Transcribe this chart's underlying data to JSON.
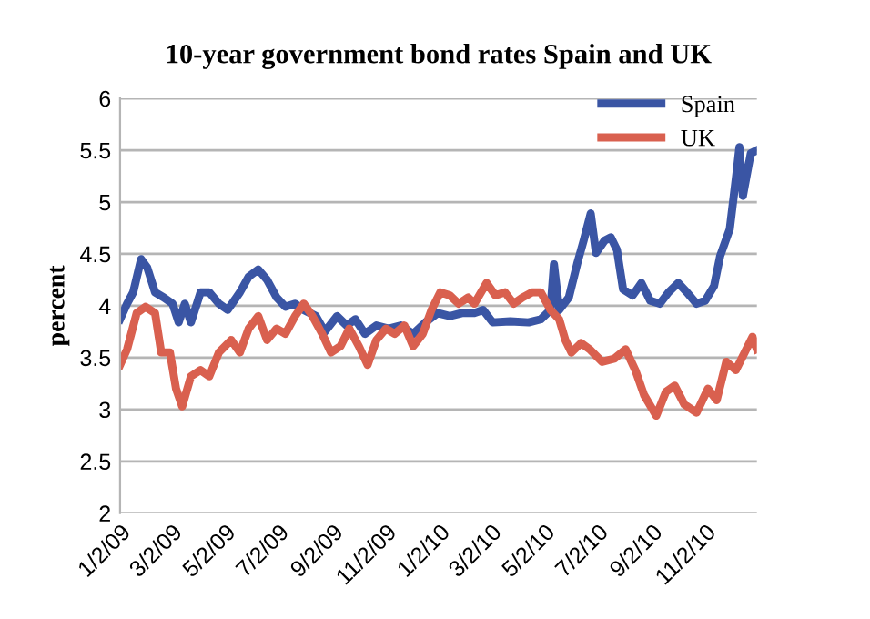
{
  "chart_data": {
    "type": "line",
    "title": "10-year government bond rates Spain and UK",
    "ylabel": "percent",
    "ylim": [
      2,
      6
    ],
    "yticks": [
      2,
      2.5,
      3,
      3.5,
      4,
      4.5,
      5,
      5.5,
      6
    ],
    "xlim": [
      "2009-01-02",
      "2010-12-31"
    ],
    "xticks": [
      {
        "value": "2009-01-02",
        "label": "1/2/09"
      },
      {
        "value": "2009-03-02",
        "label": "3/2/09"
      },
      {
        "value": "2009-05-02",
        "label": "5/2/09"
      },
      {
        "value": "2009-07-02",
        "label": "7/2/09"
      },
      {
        "value": "2009-09-02",
        "label": "9/2/09"
      },
      {
        "value": "2009-11-02",
        "label": "11/2/09"
      },
      {
        "value": "2010-01-02",
        "label": "1/2/10"
      },
      {
        "value": "2010-03-02",
        "label": "3/2/10"
      },
      {
        "value": "2010-05-02",
        "label": "5/2/10"
      },
      {
        "value": "2010-07-02",
        "label": "7/2/10"
      },
      {
        "value": "2010-09-02",
        "label": "9/2/10"
      },
      {
        "value": "2010-11-02",
        "label": "11/2/10"
      }
    ],
    "grid": "y",
    "legend": "top right",
    "marker": "none",
    "line_style": "solid",
    "series": [
      {
        "name": "Spain",
        "color": "#3a55a4",
        "x": [
          "2009-01-02",
          "2009-01-10",
          "2009-01-17",
          "2009-01-26",
          "2009-02-02",
          "2009-02-11",
          "2009-02-21",
          "2009-03-03",
          "2009-03-10",
          "2009-03-17",
          "2009-03-24",
          "2009-04-04",
          "2009-04-14",
          "2009-04-25",
          "2009-05-05",
          "2009-05-19",
          "2009-05-29",
          "2009-06-09",
          "2009-06-19",
          "2009-06-30",
          "2009-07-10",
          "2009-07-21",
          "2009-07-31",
          "2009-08-14",
          "2009-08-24",
          "2009-09-07",
          "2009-09-18",
          "2009-09-28",
          "2009-10-09",
          "2009-10-22",
          "2009-11-05",
          "2009-11-19",
          "2009-12-03",
          "2009-12-17",
          "2009-12-31",
          "2010-01-14",
          "2010-01-28",
          "2010-02-11",
          "2010-02-21",
          "2010-03-04",
          "2010-03-24",
          "2010-04-14",
          "2010-04-28",
          "2010-05-09",
          "2010-05-13",
          "2010-05-19",
          "2010-05-30",
          "2010-06-09",
          "2010-06-16",
          "2010-06-24",
          "2010-06-30",
          "2010-07-10",
          "2010-07-17",
          "2010-07-24",
          "2010-07-31",
          "2010-08-11",
          "2010-08-21",
          "2010-08-31",
          "2010-09-11",
          "2010-09-21",
          "2010-10-02",
          "2010-10-12",
          "2010-10-23",
          "2010-11-02",
          "2010-11-12",
          "2010-11-19",
          "2010-11-30",
          "2010-12-08",
          "2010-12-11",
          "2010-12-15",
          "2010-12-24",
          "2010-12-31"
        ],
        "values": [
          3.87,
          4.02,
          4.13,
          4.45,
          4.37,
          4.13,
          4.08,
          4.02,
          3.84,
          4.02,
          3.84,
          4.13,
          4.13,
          4.02,
          3.96,
          4.13,
          4.28,
          4.35,
          4.25,
          4.08,
          3.99,
          4.02,
          3.96,
          3.9,
          3.75,
          3.9,
          3.81,
          3.87,
          3.73,
          3.81,
          3.78,
          3.81,
          3.73,
          3.84,
          3.93,
          3.9,
          3.93,
          3.93,
          3.96,
          3.84,
          3.85,
          3.84,
          3.87,
          3.96,
          4.4,
          3.96,
          4.08,
          4.42,
          4.63,
          4.89,
          4.51,
          4.63,
          4.66,
          4.54,
          4.16,
          4.1,
          4.22,
          4.05,
          4.02,
          4.13,
          4.22,
          4.13,
          4.02,
          4.05,
          4.19,
          4.48,
          4.74,
          5.3,
          5.53,
          5.06,
          5.47,
          5.5
        ]
      },
      {
        "name": "UK",
        "color": "#d9604f",
        "x": [
          "2009-01-02",
          "2009-01-10",
          "2009-01-21",
          "2009-01-31",
          "2009-02-11",
          "2009-02-18",
          "2009-02-28",
          "2009-03-07",
          "2009-03-14",
          "2009-03-24",
          "2009-04-04",
          "2009-04-14",
          "2009-04-25",
          "2009-05-09",
          "2009-05-19",
          "2009-05-29",
          "2009-06-09",
          "2009-06-19",
          "2009-06-30",
          "2009-07-10",
          "2009-07-21",
          "2009-07-31",
          "2009-08-10",
          "2009-08-21",
          "2009-08-31",
          "2009-09-11",
          "2009-09-21",
          "2009-10-02",
          "2009-10-12",
          "2009-10-22",
          "2009-11-02",
          "2009-11-12",
          "2009-11-23",
          "2009-12-03",
          "2009-12-14",
          "2009-12-24",
          "2010-01-03",
          "2010-01-14",
          "2010-01-24",
          "2010-02-04",
          "2010-02-11",
          "2010-02-25",
          "2010-03-07",
          "2010-03-18",
          "2010-03-28",
          "2010-04-07",
          "2010-04-18",
          "2010-04-28",
          "2010-05-09",
          "2010-05-19",
          "2010-05-26",
          "2010-06-02",
          "2010-06-13",
          "2010-06-23",
          "2010-07-07",
          "2010-07-21",
          "2010-08-03",
          "2010-08-14",
          "2010-08-24",
          "2010-09-07",
          "2010-09-18",
          "2010-09-28",
          "2010-10-09",
          "2010-10-23",
          "2010-11-05",
          "2010-11-15",
          "2010-11-26",
          "2010-12-07",
          "2010-12-17",
          "2010-12-26",
          "2010-12-31"
        ],
        "values": [
          3.43,
          3.58,
          3.93,
          3.99,
          3.93,
          3.55,
          3.55,
          3.2,
          3.03,
          3.32,
          3.38,
          3.32,
          3.55,
          3.67,
          3.55,
          3.78,
          3.9,
          3.67,
          3.78,
          3.73,
          3.9,
          4.02,
          3.9,
          3.73,
          3.55,
          3.61,
          3.78,
          3.61,
          3.43,
          3.67,
          3.78,
          3.73,
          3.81,
          3.61,
          3.73,
          3.96,
          4.13,
          4.1,
          4.02,
          4.08,
          4.02,
          4.22,
          4.1,
          4.13,
          4.02,
          4.08,
          4.13,
          4.13,
          3.96,
          3.87,
          3.67,
          3.55,
          3.64,
          3.58,
          3.46,
          3.49,
          3.58,
          3.38,
          3.14,
          2.94,
          3.17,
          3.23,
          3.05,
          2.97,
          3.2,
          3.09,
          3.46,
          3.38,
          3.55,
          3.7,
          3.58
        ]
      }
    ]
  }
}
